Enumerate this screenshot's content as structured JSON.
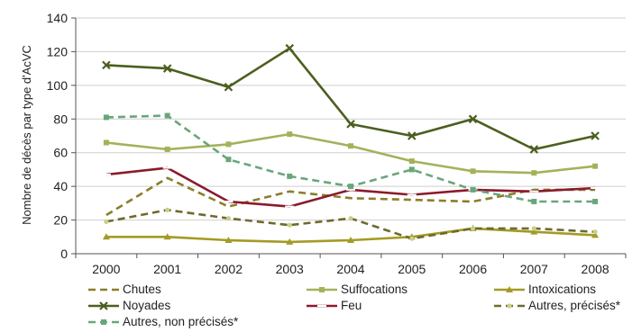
{
  "chart_data": {
    "type": "line",
    "ylabel": "Nombre de décès par type d'AcVC",
    "xlabel": "",
    "ylim": [
      0,
      140
    ],
    "yticks": [
      0,
      20,
      40,
      60,
      80,
      100,
      120,
      140
    ],
    "categories": [
      "2000",
      "2001",
      "2002",
      "2003",
      "2004",
      "2005",
      "2006",
      "2007",
      "2008"
    ],
    "grid": "horizontal",
    "legend_position": "bottom",
    "series": [
      {
        "name": "Chutes",
        "color": "#8b7e2a",
        "dash": "dashed",
        "marker": "none",
        "values": [
          23,
          45,
          28,
          37,
          33,
          32,
          31,
          38,
          38
        ]
      },
      {
        "name": "Suffocations",
        "color": "#a3b25a",
        "dash": "solid",
        "marker": "square",
        "values": [
          66,
          62,
          65,
          71,
          64,
          55,
          49,
          48,
          52
        ]
      },
      {
        "name": "Intoxications",
        "color": "#a39b24",
        "dash": "solid",
        "marker": "triangle",
        "values": [
          10,
          10,
          8,
          7,
          8,
          10,
          15,
          13,
          11
        ]
      },
      {
        "name": "Noyades",
        "color": "#4b5f1f",
        "dash": "solid",
        "marker": "x",
        "values": [
          112,
          110,
          99,
          122,
          77,
          70,
          80,
          62,
          70
        ]
      },
      {
        "name": "Feu",
        "color": "#8b1a2c",
        "dash": "solid",
        "marker": "dash",
        "values": [
          47,
          51,
          31,
          28,
          38,
          35,
          38,
          37,
          39
        ]
      },
      {
        "name": "Autres, précisés*",
        "color": "#6e6a2c",
        "dash": "dashed",
        "marker": "circle",
        "values": [
          19,
          26,
          21,
          17,
          21,
          9,
          15,
          15,
          13
        ]
      },
      {
        "name": "Autres, non précisés*",
        "color": "#6aa67a",
        "dash": "dashed",
        "marker": "square",
        "values": [
          81,
          82,
          56,
          46,
          40,
          50,
          38,
          31,
          31
        ]
      }
    ]
  }
}
